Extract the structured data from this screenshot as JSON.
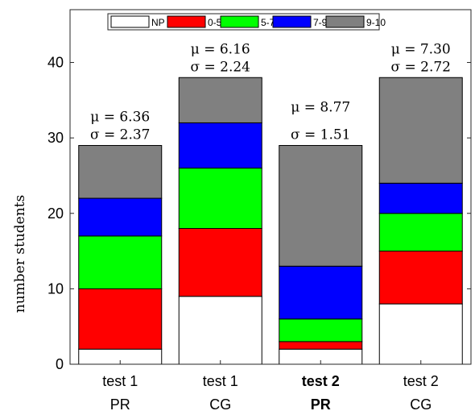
{
  "chart_data": {
    "type": "bar",
    "stacked": true,
    "ylabel": "number students",
    "ylim": [
      0,
      47
    ],
    "yticks": [
      0,
      10,
      20,
      30,
      40
    ],
    "grid": false,
    "legend_position": "top",
    "categories": [
      {
        "line1": "test 1",
        "line2": "PR",
        "bold": false
      },
      {
        "line1": "test 1",
        "line2": "CG",
        "bold": false
      },
      {
        "line1": "test 2",
        "line2": "PR",
        "bold": true
      },
      {
        "line1": "test 2",
        "line2": "CG",
        "bold": false
      }
    ],
    "series": [
      {
        "name": "NP",
        "color": "#ffffff",
        "values": [
          2,
          9,
          2,
          8
        ]
      },
      {
        "name": "0-5",
        "color": "#ff0000",
        "values": [
          8,
          9,
          1,
          7
        ]
      },
      {
        "name": "5-7",
        "color": "#00ff00",
        "values": [
          7,
          8,
          3,
          5
        ]
      },
      {
        "name": "7-9",
        "color": "#0000ff",
        "values": [
          5,
          6,
          7,
          4
        ]
      },
      {
        "name": "9-10",
        "color": "#808080",
        "values": [
          7,
          6,
          16,
          14
        ]
      }
    ],
    "annotations": [
      {
        "mu": "μ = 6.36",
        "sigma": "σ = 2.37"
      },
      {
        "mu": "μ = 6.16",
        "sigma": "σ = 2.24"
      },
      {
        "mu": "μ = 8.77",
        "sigma": "σ = 1.51"
      },
      {
        "mu": "μ = 7.30",
        "sigma": "σ = 2.72"
      }
    ]
  }
}
